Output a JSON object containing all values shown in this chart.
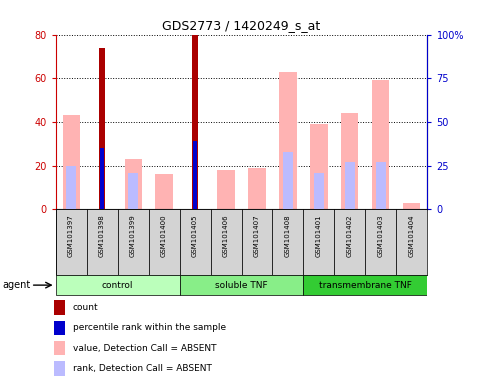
{
  "title": "GDS2773 / 1420249_s_at",
  "samples": [
    "GSM101397",
    "GSM101398",
    "GSM101399",
    "GSM101400",
    "GSM101405",
    "GSM101406",
    "GSM101407",
    "GSM101408",
    "GSM101401",
    "GSM101402",
    "GSM101403",
    "GSM101404"
  ],
  "groups": [
    {
      "name": "control",
      "color": "#bbffbb",
      "indices": [
        0,
        1,
        2,
        3
      ]
    },
    {
      "name": "soluble TNF",
      "color": "#88ee88",
      "indices": [
        4,
        5,
        6,
        7
      ]
    },
    {
      "name": "transmembrane TNF",
      "color": "#33cc33",
      "indices": [
        8,
        9,
        10,
        11
      ]
    }
  ],
  "value_absent": [
    43,
    0,
    23,
    16,
    0,
    18,
    19,
    63,
    39,
    44,
    59,
    3
  ],
  "rank_absent_pct": [
    25,
    0,
    21,
    0,
    0,
    0,
    0,
    33,
    21,
    27,
    27,
    0
  ],
  "count": [
    0,
    74,
    0,
    0,
    80,
    0,
    0,
    0,
    0,
    0,
    0,
    0
  ],
  "percentile_pct": [
    0,
    35,
    0,
    0,
    39,
    0,
    0,
    0,
    0,
    0,
    0,
    0
  ],
  "ylim_left": [
    0,
    80
  ],
  "ylim_right": [
    0,
    100
  ],
  "yticks_left": [
    0,
    20,
    40,
    60,
    80
  ],
  "yticks_right": [
    0,
    25,
    50,
    75,
    100
  ],
  "yticklabels_right": [
    "0",
    "25",
    "50",
    "75",
    "100%"
  ],
  "color_count": "#aa0000",
  "color_percentile": "#0000cc",
  "color_value_absent": "#ffb3b3",
  "color_rank_absent": "#bbbbff",
  "color_left_axis": "#cc0000",
  "color_right_axis": "#0000cc",
  "legend_items": [
    {
      "color": "#aa0000",
      "label": "count"
    },
    {
      "color": "#0000cc",
      "label": "percentile rank within the sample"
    },
    {
      "color": "#ffb3b3",
      "label": "value, Detection Call = ABSENT"
    },
    {
      "color": "#bbbbff",
      "label": "rank, Detection Call = ABSENT"
    }
  ],
  "agent_label": "agent"
}
